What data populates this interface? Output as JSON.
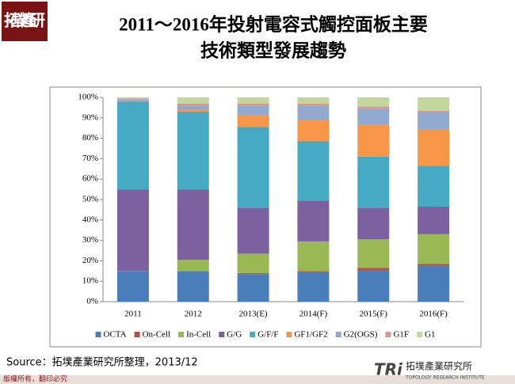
{
  "logo": "拓墣產研",
  "chart_data": {
    "type": "stacked_bar_100",
    "title": [
      "2011～2016年投射電容式觸控面板主要",
      "技術類型發展趨勢"
    ],
    "categories": [
      "2011",
      "2012",
      "2013(E)",
      "2014(F)",
      "2015(F)",
      "2016(F)"
    ],
    "series": [
      {
        "name": "OCTA",
        "color": "#4a7ebb",
        "values": [
          15,
          15,
          13.5,
          14.5,
          15.5,
          17.5
        ]
      },
      {
        "name": "On-Cell",
        "color": "#be4b48",
        "values": [
          0,
          0,
          0.5,
          0.5,
          1,
          1
        ]
      },
      {
        "name": "In-Cell",
        "color": "#98b954",
        "values": [
          0,
          5.5,
          9.5,
          14.5,
          14,
          14.5
        ]
      },
      {
        "name": "G/G",
        "color": "#7d60a0",
        "values": [
          40,
          34.5,
          22.5,
          20,
          15.5,
          13.5
        ]
      },
      {
        "name": "G/F/F",
        "color": "#46aac5",
        "values": [
          43,
          38,
          39.5,
          29,
          25,
          20
        ]
      },
      {
        "name": "GF1/GF2",
        "color": "#f79646",
        "values": [
          0.5,
          1,
          6,
          10.5,
          15.5,
          18
        ]
      },
      {
        "name": "G2(OGS)",
        "color": "#92a9cf",
        "values": [
          0.5,
          2,
          4.5,
          7,
          8,
          8.5
        ]
      },
      {
        "name": "G1F",
        "color": "#d99694",
        "values": [
          0.5,
          1,
          1,
          1,
          1,
          0.5
        ]
      },
      {
        "name": "G1",
        "color": "#c3d69b",
        "values": [
          0.5,
          3,
          3,
          3,
          4.5,
          6.5
        ]
      }
    ],
    "ylim": [
      0,
      100
    ],
    "yticks": [
      {
        "value": 0,
        "label": "0%"
      },
      {
        "value": 10,
        "label": "10%"
      },
      {
        "value": 20,
        "label": "20%"
      },
      {
        "value": 30,
        "label": "30%"
      },
      {
        "value": 40,
        "label": "40%"
      },
      {
        "value": 50,
        "label": "50%"
      },
      {
        "value": 60,
        "label": "60%"
      },
      {
        "value": 70,
        "label": "70%"
      },
      {
        "value": 80,
        "label": "80%"
      },
      {
        "value": 90,
        "label": "90%"
      },
      {
        "value": 100,
        "label": "100%"
      }
    ],
    "legend": "bottom"
  },
  "source": "Source：拓墣產業研究所整理，2013/12",
  "copyright": "版權所有，翻印必究",
  "brand": {
    "mark": "TRi",
    "name": "拓墣產業研究所",
    "name_en": "TOPOLOGY RESEARCH INSTITUTE"
  }
}
